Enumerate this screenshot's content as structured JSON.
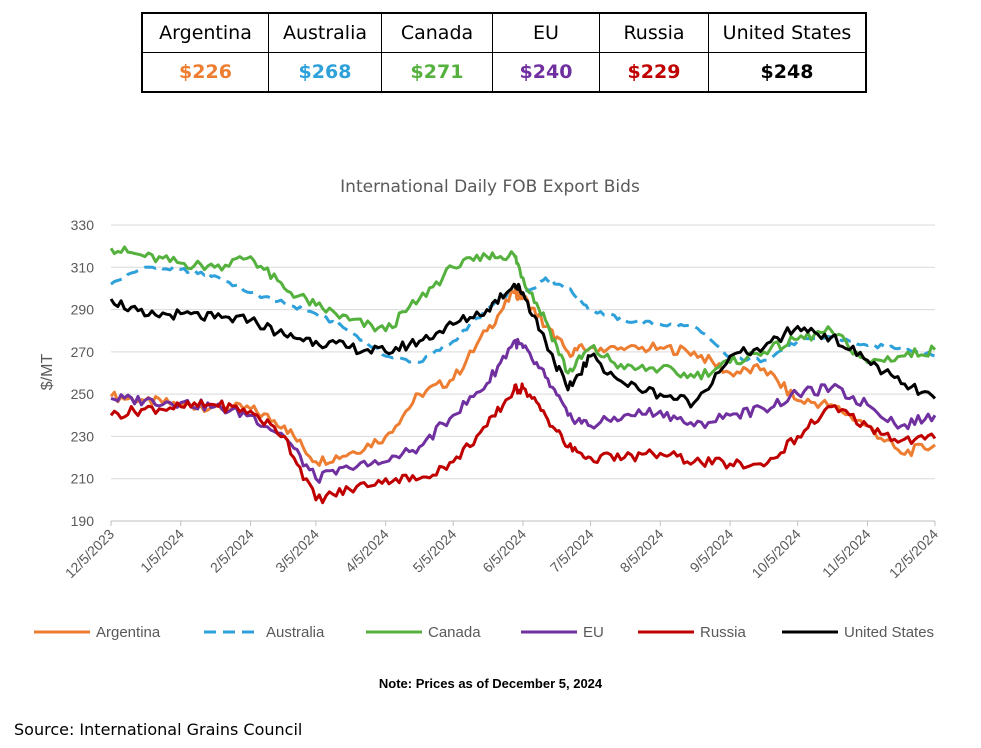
{
  "price_table": {
    "headers": [
      "Argentina",
      "Australia",
      "Canada",
      "EU",
      "Russia",
      "United States"
    ],
    "values": [
      "$226",
      "$268",
      "$271",
      "$240",
      "$229",
      "$248"
    ],
    "colors": [
      "#ED7D31",
      "#2EA0DA",
      "#55B13E",
      "#7030A0",
      "#C00000",
      "#000000"
    ]
  },
  "note": "Note: Prices as of December 5, 2024",
  "source": "Source: International Grains Council",
  "chart_data": {
    "type": "line",
    "title": "International Daily FOB Export Bids",
    "xlabel": "",
    "ylabel": "$/MT",
    "ylim": [
      190,
      330
    ],
    "yticks": [
      "190",
      "210",
      "230",
      "250",
      "270",
      "290",
      "310",
      "330"
    ],
    "ytick_values": [
      190,
      210,
      230,
      250,
      270,
      290,
      310,
      330
    ],
    "grid": true,
    "legend_position": "bottom",
    "x": [
      "12/5/2023",
      "12/20/2023",
      "1/5/2024",
      "1/20/2024",
      "2/5/2024",
      "2/20/2024",
      "3/5/2024",
      "3/20/2024",
      "4/5/2024",
      "4/20/2024",
      "5/5/2024",
      "5/20/2024",
      "6/1/2024",
      "6/5/2024",
      "6/15/2024",
      "6/25/2024",
      "7/5/2024",
      "7/20/2024",
      "8/5/2024",
      "8/20/2024",
      "9/5/2024",
      "9/20/2024",
      "10/5/2024",
      "10/20/2024",
      "11/5/2024",
      "11/20/2024",
      "12/5/2024"
    ],
    "xticks": [
      "12/5/2023",
      "1/5/2024",
      "2/5/2024",
      "3/5/2024",
      "4/5/2024",
      "5/5/2024",
      "6/5/2024",
      "7/5/2024",
      "8/5/2024",
      "9/5/2024",
      "10/5/2024",
      "11/5/2024",
      "12/5/2024"
    ],
    "series": [
      {
        "name": "Argentina",
        "color": "#ED7D31",
        "dash": false,
        "values": [
          249,
          247,
          245,
          244,
          243,
          235,
          218,
          222,
          230,
          250,
          257,
          280,
          298,
          296,
          282,
          270,
          272,
          271,
          272,
          270,
          260,
          262,
          247,
          245,
          235,
          222,
          226
        ]
      },
      {
        "name": "Australia",
        "color": "#2EA0DA",
        "dash": true,
        "values": [
          302,
          310,
          309,
          306,
          298,
          293,
          288,
          280,
          268,
          265,
          275,
          290,
          300,
          297,
          305,
          300,
          290,
          285,
          283,
          282,
          267,
          266,
          275,
          277,
          273,
          272,
          268
        ]
      },
      {
        "name": "Canada",
        "color": "#55B13E",
        "dash": false,
        "values": [
          319,
          315,
          312,
          310,
          315,
          300,
          292,
          285,
          280,
          295,
          310,
          315,
          316,
          305,
          285,
          260,
          272,
          262,
          262,
          258,
          265,
          270,
          276,
          280,
          265,
          268,
          271
        ]
      },
      {
        "name": "EU",
        "color": "#7030A0",
        "dash": false,
        "values": [
          248,
          247,
          246,
          244,
          240,
          230,
          210,
          215,
          218,
          225,
          240,
          255,
          275,
          272,
          258,
          240,
          235,
          240,
          242,
          235,
          240,
          243,
          250,
          253,
          245,
          235,
          240
        ]
      },
      {
        "name": "Russia",
        "color": "#C00000",
        "dash": false,
        "values": [
          240,
          243,
          244,
          245,
          242,
          230,
          200,
          205,
          210,
          210,
          218,
          235,
          252,
          253,
          240,
          225,
          220,
          220,
          222,
          218,
          217,
          216,
          230,
          244,
          235,
          228,
          229
        ]
      },
      {
        "name": "United States",
        "color": "#000000",
        "dash": false,
        "values": [
          295,
          287,
          288,
          286,
          285,
          278,
          275,
          272,
          270,
          275,
          283,
          290,
          302,
          298,
          275,
          252,
          268,
          255,
          250,
          246,
          268,
          272,
          282,
          277,
          266,
          255,
          248
        ]
      }
    ]
  }
}
